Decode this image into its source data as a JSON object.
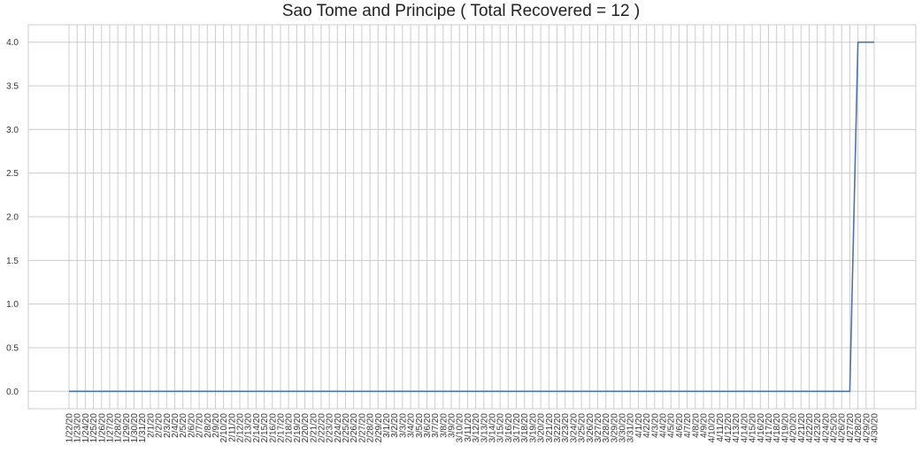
{
  "chart_data": {
    "type": "line",
    "title": "Sao Tome and Principe ( Total Recovered = 12 )",
    "xlabel": "",
    "ylabel": "",
    "x_start": "1/22/20",
    "x_end": "4/30/20",
    "ylim": [
      -0.2,
      4.2
    ],
    "yticks": [
      0.0,
      0.5,
      1.0,
      1.5,
      2.0,
      2.5,
      3.0,
      3.5,
      4.0
    ],
    "grid": true,
    "legend": "none",
    "series": [
      {
        "values": [
          0,
          0,
          0,
          0,
          0,
          0,
          0,
          0,
          0,
          0,
          0,
          0,
          0,
          0,
          0,
          0,
          0,
          0,
          0,
          0,
          0,
          0,
          0,
          0,
          0,
          0,
          0,
          0,
          0,
          0,
          0,
          0,
          0,
          0,
          0,
          0,
          0,
          0,
          0,
          0,
          0,
          0,
          0,
          0,
          0,
          0,
          0,
          0,
          0,
          0,
          0,
          0,
          0,
          0,
          0,
          0,
          0,
          0,
          0,
          0,
          0,
          0,
          0,
          0,
          0,
          0,
          0,
          0,
          0,
          0,
          0,
          0,
          0,
          0,
          0,
          0,
          0,
          0,
          0,
          0,
          0,
          0,
          0,
          0,
          0,
          0,
          0,
          0,
          0,
          0,
          0,
          0,
          0,
          0,
          0,
          0,
          0,
          4,
          4,
          4
        ],
        "color": "#4c72b0"
      }
    ],
    "colors": {
      "grid": "#cccccc",
      "axis": "#cccccc",
      "line": "#4c72b0"
    }
  }
}
